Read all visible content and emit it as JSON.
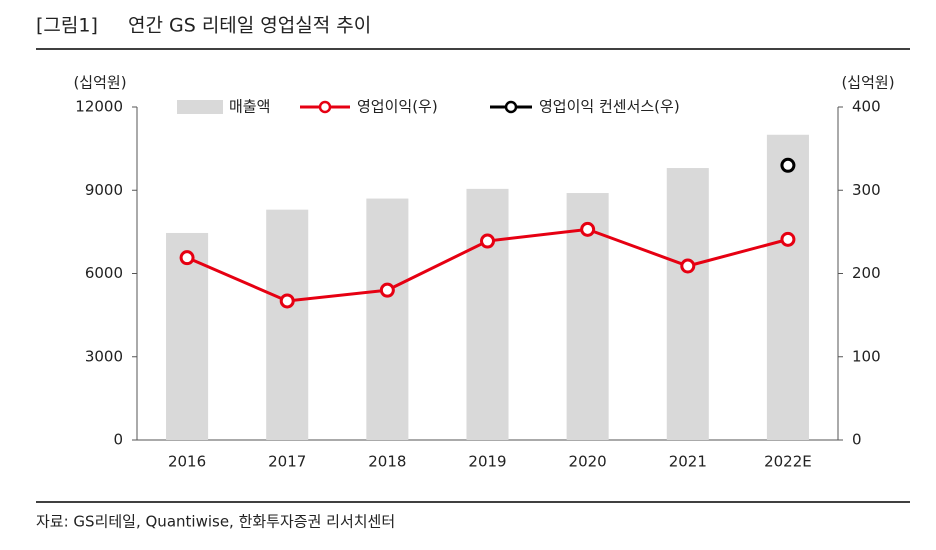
{
  "chart_data": {
    "type": "bar",
    "title_tag": "[그림1]",
    "title": "연간 GS 리테일 영업실적 추이",
    "y_label": "(십억원)",
    "y2_label": "(십억원)",
    "source": "자료: GS리테일, Quantiwise, 한화투자증권 리서치센터",
    "categories": [
      "2016",
      "2017",
      "2018",
      "2019",
      "2020",
      "2021",
      "2022E"
    ],
    "series": [
      {
        "name": "매출액",
        "type": "bar",
        "axis": "y",
        "color": "#d9d9d9",
        "values": [
          7460,
          8300,
          8700,
          9050,
          8900,
          9800,
          11000
        ]
      },
      {
        "name": "영업이익(우)",
        "type": "line",
        "axis": "y2",
        "color": "#e60012",
        "values": [
          219,
          167,
          180,
          239,
          253,
          209,
          241
        ]
      },
      {
        "name": "영업이익 컨센서스(우)",
        "type": "line",
        "axis": "y2",
        "color": "#000000",
        "values": [
          null,
          null,
          null,
          null,
          null,
          null,
          330
        ]
      }
    ],
    "ylim": [
      0,
      12000
    ],
    "yticks": [
      0,
      3000,
      6000,
      9000,
      12000
    ],
    "y2lim": [
      0,
      400
    ],
    "y2ticks": [
      0,
      100,
      200,
      300,
      400
    ],
    "grid": false
  }
}
